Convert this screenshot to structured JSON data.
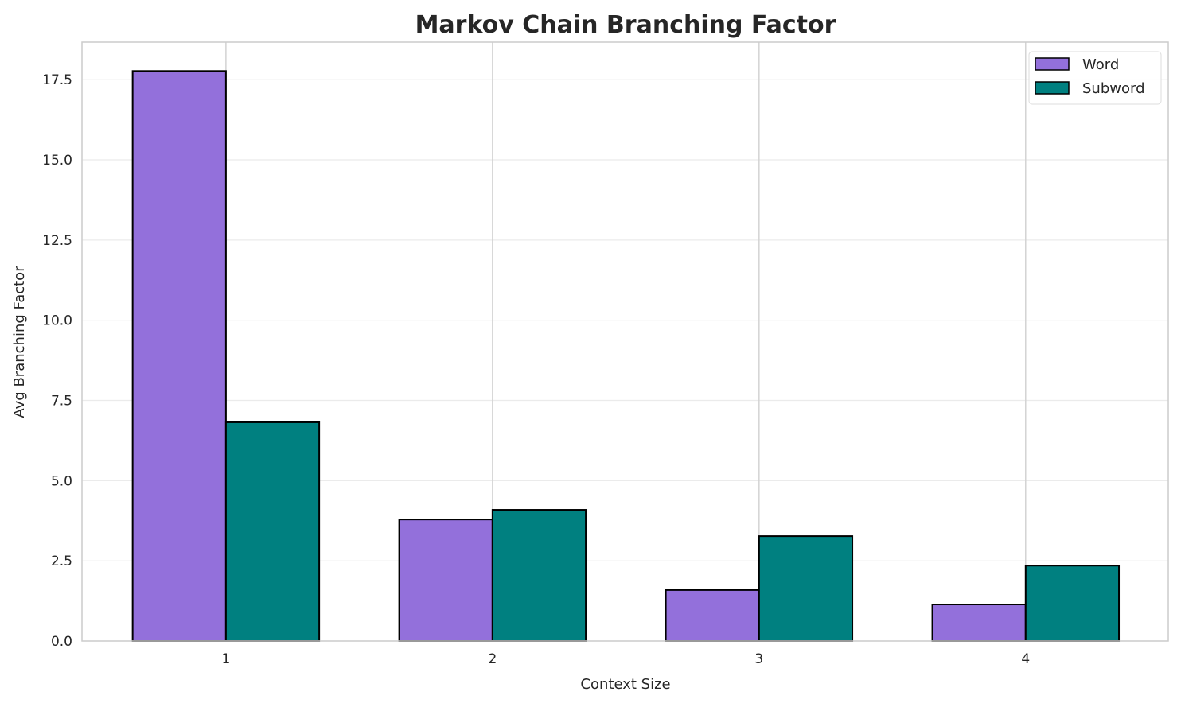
{
  "chart_data": {
    "type": "bar",
    "title": "Markov Chain Branching Factor",
    "xlabel": "Context Size",
    "ylabel": "Avg Branching Factor",
    "categories": [
      "1",
      "2",
      "3",
      "4"
    ],
    "series": [
      {
        "name": "Word",
        "color": "#9370DB",
        "values": [
          17.77,
          3.79,
          1.59,
          1.14
        ]
      },
      {
        "name": "Subword",
        "color": "#008080",
        "values": [
          6.82,
          4.09,
          3.27,
          2.35
        ]
      }
    ],
    "ylim": [
      0,
      18.67
    ],
    "yticks": [
      "0.0",
      "2.5",
      "5.0",
      "7.5",
      "10.0",
      "12.5",
      "15.0",
      "17.5"
    ],
    "grid": true,
    "legend": "top-right"
  }
}
